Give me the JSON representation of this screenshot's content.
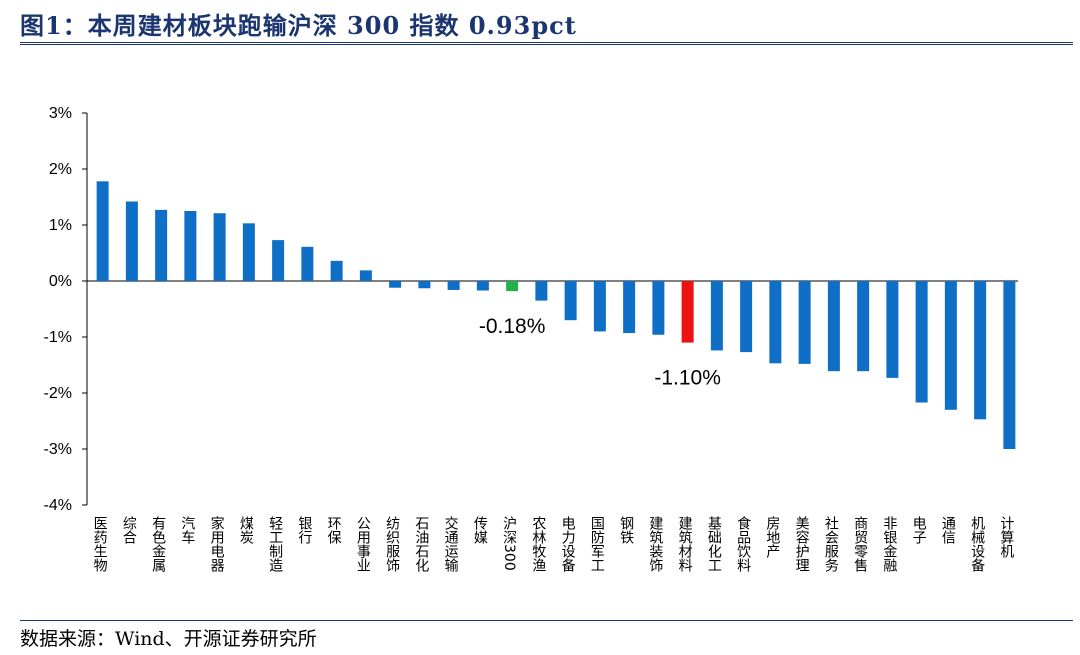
{
  "header": {
    "title": "图1：本周建材板块跑输沪深 300 指数 0.93pct"
  },
  "footer": {
    "source": "数据来源：Wind、开源证券研究所"
  },
  "chart_data": {
    "type": "bar",
    "title": "",
    "xlabel": "",
    "ylabel": "",
    "ylim": [
      -4,
      3
    ],
    "yticks": [
      3,
      2,
      1,
      0,
      -1,
      -2,
      -3,
      -4
    ],
    "ytick_labels": [
      "3%",
      "2%",
      "1%",
      "0%",
      "-1%",
      "-2%",
      "-3%",
      "-4%"
    ],
    "grid": false,
    "legend": "none",
    "categories": [
      "医药生物",
      "综合",
      "有色金属",
      "汽车",
      "家用电器",
      "煤炭",
      "轻工制造",
      "银行",
      "环保",
      "公用事业",
      "纺织服饰",
      "石油石化",
      "交通运输",
      "传媒",
      "沪深300",
      "农林牧渔",
      "电力设备",
      "国防军工",
      "钢铁",
      "建筑装饰",
      "建筑材料",
      "基础化工",
      "食品饮料",
      "房地产",
      "美容护理",
      "社会服务",
      "商贸零售",
      "非银金融",
      "电子",
      "通信",
      "机械设备",
      "计算机"
    ],
    "values": [
      1.78,
      1.42,
      1.27,
      1.25,
      1.21,
      1.03,
      0.73,
      0.61,
      0.36,
      0.19,
      -0.12,
      -0.13,
      -0.16,
      -0.17,
      -0.18,
      -0.35,
      -0.7,
      -0.9,
      -0.93,
      -0.96,
      -1.1,
      -1.24,
      -1.27,
      -1.47,
      -1.48,
      -1.61,
      -1.61,
      -1.73,
      -2.17,
      -2.3,
      -2.47,
      -3.0
    ],
    "colors": {
      "default": "#0f6fc6",
      "highlight_csi300": "#22b14c",
      "highlight_building_materials": "#ee1111"
    },
    "highlights": {
      "沪深300": "highlight_csi300",
      "建筑材料": "highlight_building_materials"
    },
    "annotations": [
      {
        "category": "沪深300",
        "text": "-0.18%"
      },
      {
        "category": "建筑材料",
        "text": "-1.10%"
      }
    ]
  }
}
